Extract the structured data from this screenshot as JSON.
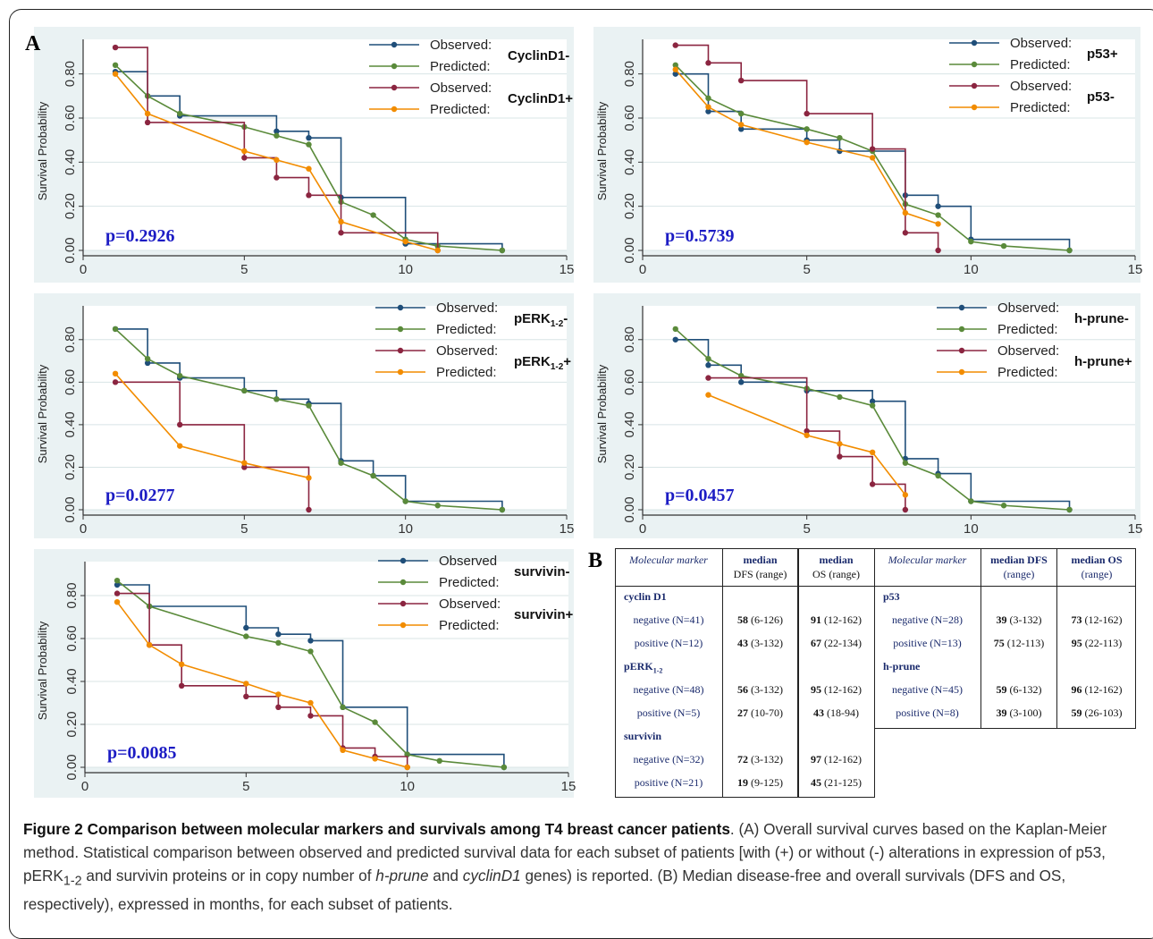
{
  "figure_label_a": "A",
  "figure_label_b": "B",
  "legend_observed": "Observed:",
  "legend_observed_nocolon": "Observed",
  "legend_predicted": "Predicted:",
  "ylabel": "Survival Probability",
  "chart_data": [
    {
      "type": "line",
      "ylabel": "Survival Probability",
      "xlim": [
        0,
        15
      ],
      "ylim": [
        0,
        0.9
      ],
      "xticks": [
        "0",
        "5",
        "10",
        "15"
      ],
      "yticks": [
        "0.00",
        "0.20",
        "0.40",
        "0.60",
        "0.80"
      ],
      "pvalue": "p=0.2926",
      "group_labels": [
        "CyclinD1-",
        "CyclinD1+"
      ],
      "series": [
        {
          "name": "Observed: CyclinD1-",
          "color": "#1f4e79",
          "step": true,
          "x": [
            1,
            2,
            3,
            6,
            7,
            8,
            10,
            13
          ],
          "y": [
            0.81,
            0.7,
            0.61,
            0.54,
            0.51,
            0.24,
            0.03,
            0.0
          ]
        },
        {
          "name": "Predicted: CyclinD1-",
          "color": "#5a8a3a",
          "step": false,
          "x": [
            1,
            2,
            3,
            5,
            6,
            7,
            8,
            9,
            10,
            11,
            13
          ],
          "y": [
            0.84,
            0.7,
            0.62,
            0.56,
            0.52,
            0.48,
            0.22,
            0.16,
            0.05,
            0.02,
            0.0
          ]
        },
        {
          "name": "Observed: CyclinD1+",
          "color": "#8b2540",
          "step": true,
          "x": [
            1,
            2,
            5,
            6,
            7,
            8,
            11
          ],
          "y": [
            0.92,
            0.58,
            0.42,
            0.33,
            0.25,
            0.08,
            0.0
          ]
        },
        {
          "name": "Predicted: CyclinD1+",
          "color": "#f28c00",
          "step": false,
          "x": [
            1,
            2,
            5,
            6,
            7,
            8,
            10,
            11
          ],
          "y": [
            0.8,
            0.62,
            0.45,
            0.41,
            0.37,
            0.13,
            0.04,
            0.0
          ]
        }
      ]
    },
    {
      "type": "line",
      "ylabel": "Survival Probability",
      "xlim": [
        0,
        15
      ],
      "ylim": [
        0,
        0.9
      ],
      "xticks": [
        "0",
        "5",
        "10",
        "15"
      ],
      "yticks": [
        "0.00",
        "0.20",
        "0.40",
        "0.60",
        "0.80"
      ],
      "pvalue": "p=0.5739",
      "group_labels": [
        "p53+",
        "p53-"
      ],
      "series": [
        {
          "name": "Observed: p53+",
          "color": "#1f4e79",
          "step": true,
          "x": [
            1,
            2,
            3,
            5,
            6,
            8,
            9,
            10,
            13
          ],
          "y": [
            0.8,
            0.63,
            0.55,
            0.5,
            0.45,
            0.25,
            0.2,
            0.05,
            0.0
          ]
        },
        {
          "name": "Predicted: p53+",
          "color": "#5a8a3a",
          "step": false,
          "x": [
            1,
            2,
            3,
            5,
            6,
            7,
            8,
            9,
            10,
            11,
            13
          ],
          "y": [
            0.84,
            0.69,
            0.62,
            0.55,
            0.51,
            0.45,
            0.21,
            0.16,
            0.04,
            0.02,
            0.0
          ]
        },
        {
          "name": "Observed: p53-",
          "color": "#8b2540",
          "step": true,
          "x": [
            1,
            2,
            3,
            5,
            7,
            8,
            9
          ],
          "y": [
            0.93,
            0.85,
            0.77,
            0.62,
            0.46,
            0.08,
            0.0
          ]
        },
        {
          "name": "Predicted: p53-",
          "color": "#f28c00",
          "step": false,
          "x": [
            1,
            2,
            3,
            5,
            7,
            8,
            9
          ],
          "y": [
            0.82,
            0.65,
            0.57,
            0.49,
            0.42,
            0.17,
            0.12
          ]
        }
      ]
    },
    {
      "type": "line",
      "ylabel": "Survival Probability",
      "xlim": [
        0,
        15
      ],
      "ylim": [
        0,
        0.9
      ],
      "xticks": [
        "0",
        "5",
        "10",
        "15"
      ],
      "yticks": [
        "0.00",
        "0.20",
        "0.40",
        "0.60",
        "0.80"
      ],
      "pvalue": "p=0.0277",
      "group_labels": [
        "pERK1-2-",
        "pERK1-2+"
      ],
      "series": [
        {
          "name": "Observed: pERK1-2-",
          "color": "#1f4e79",
          "step": true,
          "x": [
            1,
            2,
            3,
            5,
            6,
            7,
            8,
            9,
            10,
            13
          ],
          "y": [
            0.85,
            0.69,
            0.62,
            0.56,
            0.52,
            0.5,
            0.23,
            0.16,
            0.04,
            0.0
          ]
        },
        {
          "name": "Predicted: pERK1-2-",
          "color": "#5a8a3a",
          "step": false,
          "x": [
            1,
            2,
            3,
            5,
            6,
            7,
            8,
            9,
            10,
            11,
            13
          ],
          "y": [
            0.85,
            0.71,
            0.63,
            0.56,
            0.52,
            0.49,
            0.22,
            0.16,
            0.04,
            0.02,
            0.0
          ]
        },
        {
          "name": "Observed: pERK1-2+",
          "color": "#8b2540",
          "step": true,
          "x": [
            1,
            3,
            5,
            7
          ],
          "y": [
            0.6,
            0.4,
            0.2,
            0.0
          ]
        },
        {
          "name": "Predicted: pERK1-2+",
          "color": "#f28c00",
          "step": false,
          "x": [
            1,
            3,
            5,
            7
          ],
          "y": [
            0.64,
            0.3,
            0.22,
            0.15
          ]
        }
      ]
    },
    {
      "type": "line",
      "ylabel": "Survival Probability",
      "xlim": [
        0,
        15
      ],
      "ylim": [
        0,
        0.9
      ],
      "xticks": [
        "0",
        "5",
        "10",
        "15"
      ],
      "yticks": [
        "0.00",
        "0.20",
        "0.40",
        "0.60",
        "0.80"
      ],
      "pvalue": "p=0.0457",
      "group_labels": [
        "h-prune-",
        "h-prune+"
      ],
      "series": [
        {
          "name": "Observed: h-prune-",
          "color": "#1f4e79",
          "step": true,
          "x": [
            1,
            2,
            3,
            5,
            7,
            8,
            9,
            10,
            13
          ],
          "y": [
            0.8,
            0.68,
            0.6,
            0.56,
            0.51,
            0.24,
            0.17,
            0.04,
            0.0
          ]
        },
        {
          "name": "Predicted: h-prune-",
          "color": "#5a8a3a",
          "step": false,
          "x": [
            1,
            2,
            3,
            5,
            6,
            7,
            8,
            9,
            10,
            11,
            13
          ],
          "y": [
            0.85,
            0.71,
            0.63,
            0.57,
            0.53,
            0.49,
            0.22,
            0.16,
            0.04,
            0.02,
            0.0
          ]
        },
        {
          "name": "Observed: h-prune+",
          "color": "#8b2540",
          "step": true,
          "x": [
            2,
            5,
            6,
            7,
            8
          ],
          "y": [
            0.62,
            0.37,
            0.25,
            0.12,
            0.0
          ]
        },
        {
          "name": "Predicted: h-prune+",
          "color": "#f28c00",
          "step": false,
          "x": [
            2,
            5,
            6,
            7,
            8
          ],
          "y": [
            0.54,
            0.35,
            0.31,
            0.27,
            0.07
          ]
        }
      ]
    },
    {
      "type": "line",
      "ylabel": "Survival Probability",
      "xlim": [
        0,
        15
      ],
      "ylim": [
        0,
        0.9
      ],
      "xticks": [
        "0",
        "5",
        "10",
        "15"
      ],
      "yticks": [
        "0.00",
        "0.20",
        "0.40",
        "0.60",
        "0.80"
      ],
      "pvalue": "p=0.0085",
      "group_labels": [
        "survivin-",
        "survivin+"
      ],
      "series": [
        {
          "name": "Observed survivin-",
          "color": "#1f4e79",
          "step": true,
          "x": [
            1,
            2,
            5,
            6,
            7,
            8,
            10,
            13
          ],
          "y": [
            0.85,
            0.75,
            0.65,
            0.62,
            0.59,
            0.28,
            0.06,
            0.0
          ]
        },
        {
          "name": "Predicted: survivin-",
          "color": "#5a8a3a",
          "step": false,
          "x": [
            1,
            2,
            5,
            6,
            7,
            8,
            9,
            10,
            11,
            13
          ],
          "y": [
            0.87,
            0.75,
            0.61,
            0.58,
            0.54,
            0.28,
            0.21,
            0.06,
            0.03,
            0.0
          ]
        },
        {
          "name": "Observed: survivin+",
          "color": "#8b2540",
          "step": true,
          "x": [
            1,
            2,
            3,
            5,
            6,
            7,
            8,
            9,
            10
          ],
          "y": [
            0.81,
            0.57,
            0.38,
            0.33,
            0.28,
            0.24,
            0.09,
            0.05,
            0.0
          ]
        },
        {
          "name": "Predicted: survivin+",
          "color": "#f28c00",
          "step": false,
          "x": [
            1,
            2,
            3,
            5,
            6,
            7,
            8,
            9,
            10
          ],
          "y": [
            0.77,
            0.57,
            0.48,
            0.39,
            0.34,
            0.3,
            0.08,
            0.04,
            0.0
          ]
        }
      ]
    }
  ],
  "table": {
    "headers_left": [
      "Molecular marker",
      "median",
      "DFS (range)",
      "median",
      "OS (range)"
    ],
    "headers_right": [
      "Molecular marker",
      "median DFS",
      "(range)",
      "median OS",
      "(range)"
    ],
    "left_groups": [
      {
        "name": "cyclin D1",
        "rows": [
          {
            "label": "negative (N=41)",
            "dfs": "58",
            "dfs_range": "(6-126)",
            "os": "91",
            "os_range": "(12-162)"
          },
          {
            "label": "positive (N=12)",
            "dfs": "43",
            "dfs_range": "(3-132)",
            "os": "67",
            "os_range": "(22-134)"
          }
        ]
      },
      {
        "name": "pERK1-2",
        "rows": [
          {
            "label": "negative (N=48)",
            "dfs": "56",
            "dfs_range": "(3-132)",
            "os": "95",
            "os_range": "(12-162)"
          },
          {
            "label": "positive (N=5)",
            "dfs": "27",
            "dfs_range": "(10-70)",
            "os": "43",
            "os_range": "(18-94)"
          }
        ]
      },
      {
        "name": "survivin",
        "rows": [
          {
            "label": "negative (N=32)",
            "dfs": "72",
            "dfs_range": "(3-132)",
            "os": "97",
            "os_range": "(12-162)"
          },
          {
            "label": "positive (N=21)",
            "dfs": "19",
            "dfs_range": "(9-125)",
            "os": "45",
            "os_range": "(21-125)"
          }
        ]
      }
    ],
    "right_groups": [
      {
        "name": "p53",
        "rows": [
          {
            "label": "negative (N=28)",
            "dfs": "39",
            "dfs_range": "(3-132)",
            "os": "73",
            "os_range": "(12-162)"
          },
          {
            "label": "positive (N=13)",
            "dfs": "75",
            "dfs_range": "(12-113)",
            "os": "95",
            "os_range": "(22-113)"
          }
        ]
      },
      {
        "name": "h-prune",
        "rows": [
          {
            "label": "negative (N=45)",
            "dfs": "59",
            "dfs_range": "(6-132)",
            "os": "96",
            "os_range": "(12-162)"
          },
          {
            "label": "positive (N=8)",
            "dfs": "39",
            "dfs_range": "(3-100)",
            "os": "59",
            "os_range": "(26-103)"
          }
        ]
      }
    ]
  },
  "caption": {
    "title": "Figure 2 Comparison between molecular markers and survivals among T4 breast cancer patients",
    "p1": ". (A) Overall survival curves based on the Kaplan-Meier method. Statistical comparison between observed and predicted survival data for each subset of patients [with (+) or without (-) alterations in expression of p53, pERK",
    "sub": "1-2",
    "p2": " and survivin proteins or in copy number of ",
    "hprune": "h-prune",
    "and": " and ",
    "cyclin": "cyclinD1",
    "p3": " genes) is reported. (B) Median disease-free and overall survivals (DFS and OS, respectively), expressed in months, for each subset of patients."
  }
}
